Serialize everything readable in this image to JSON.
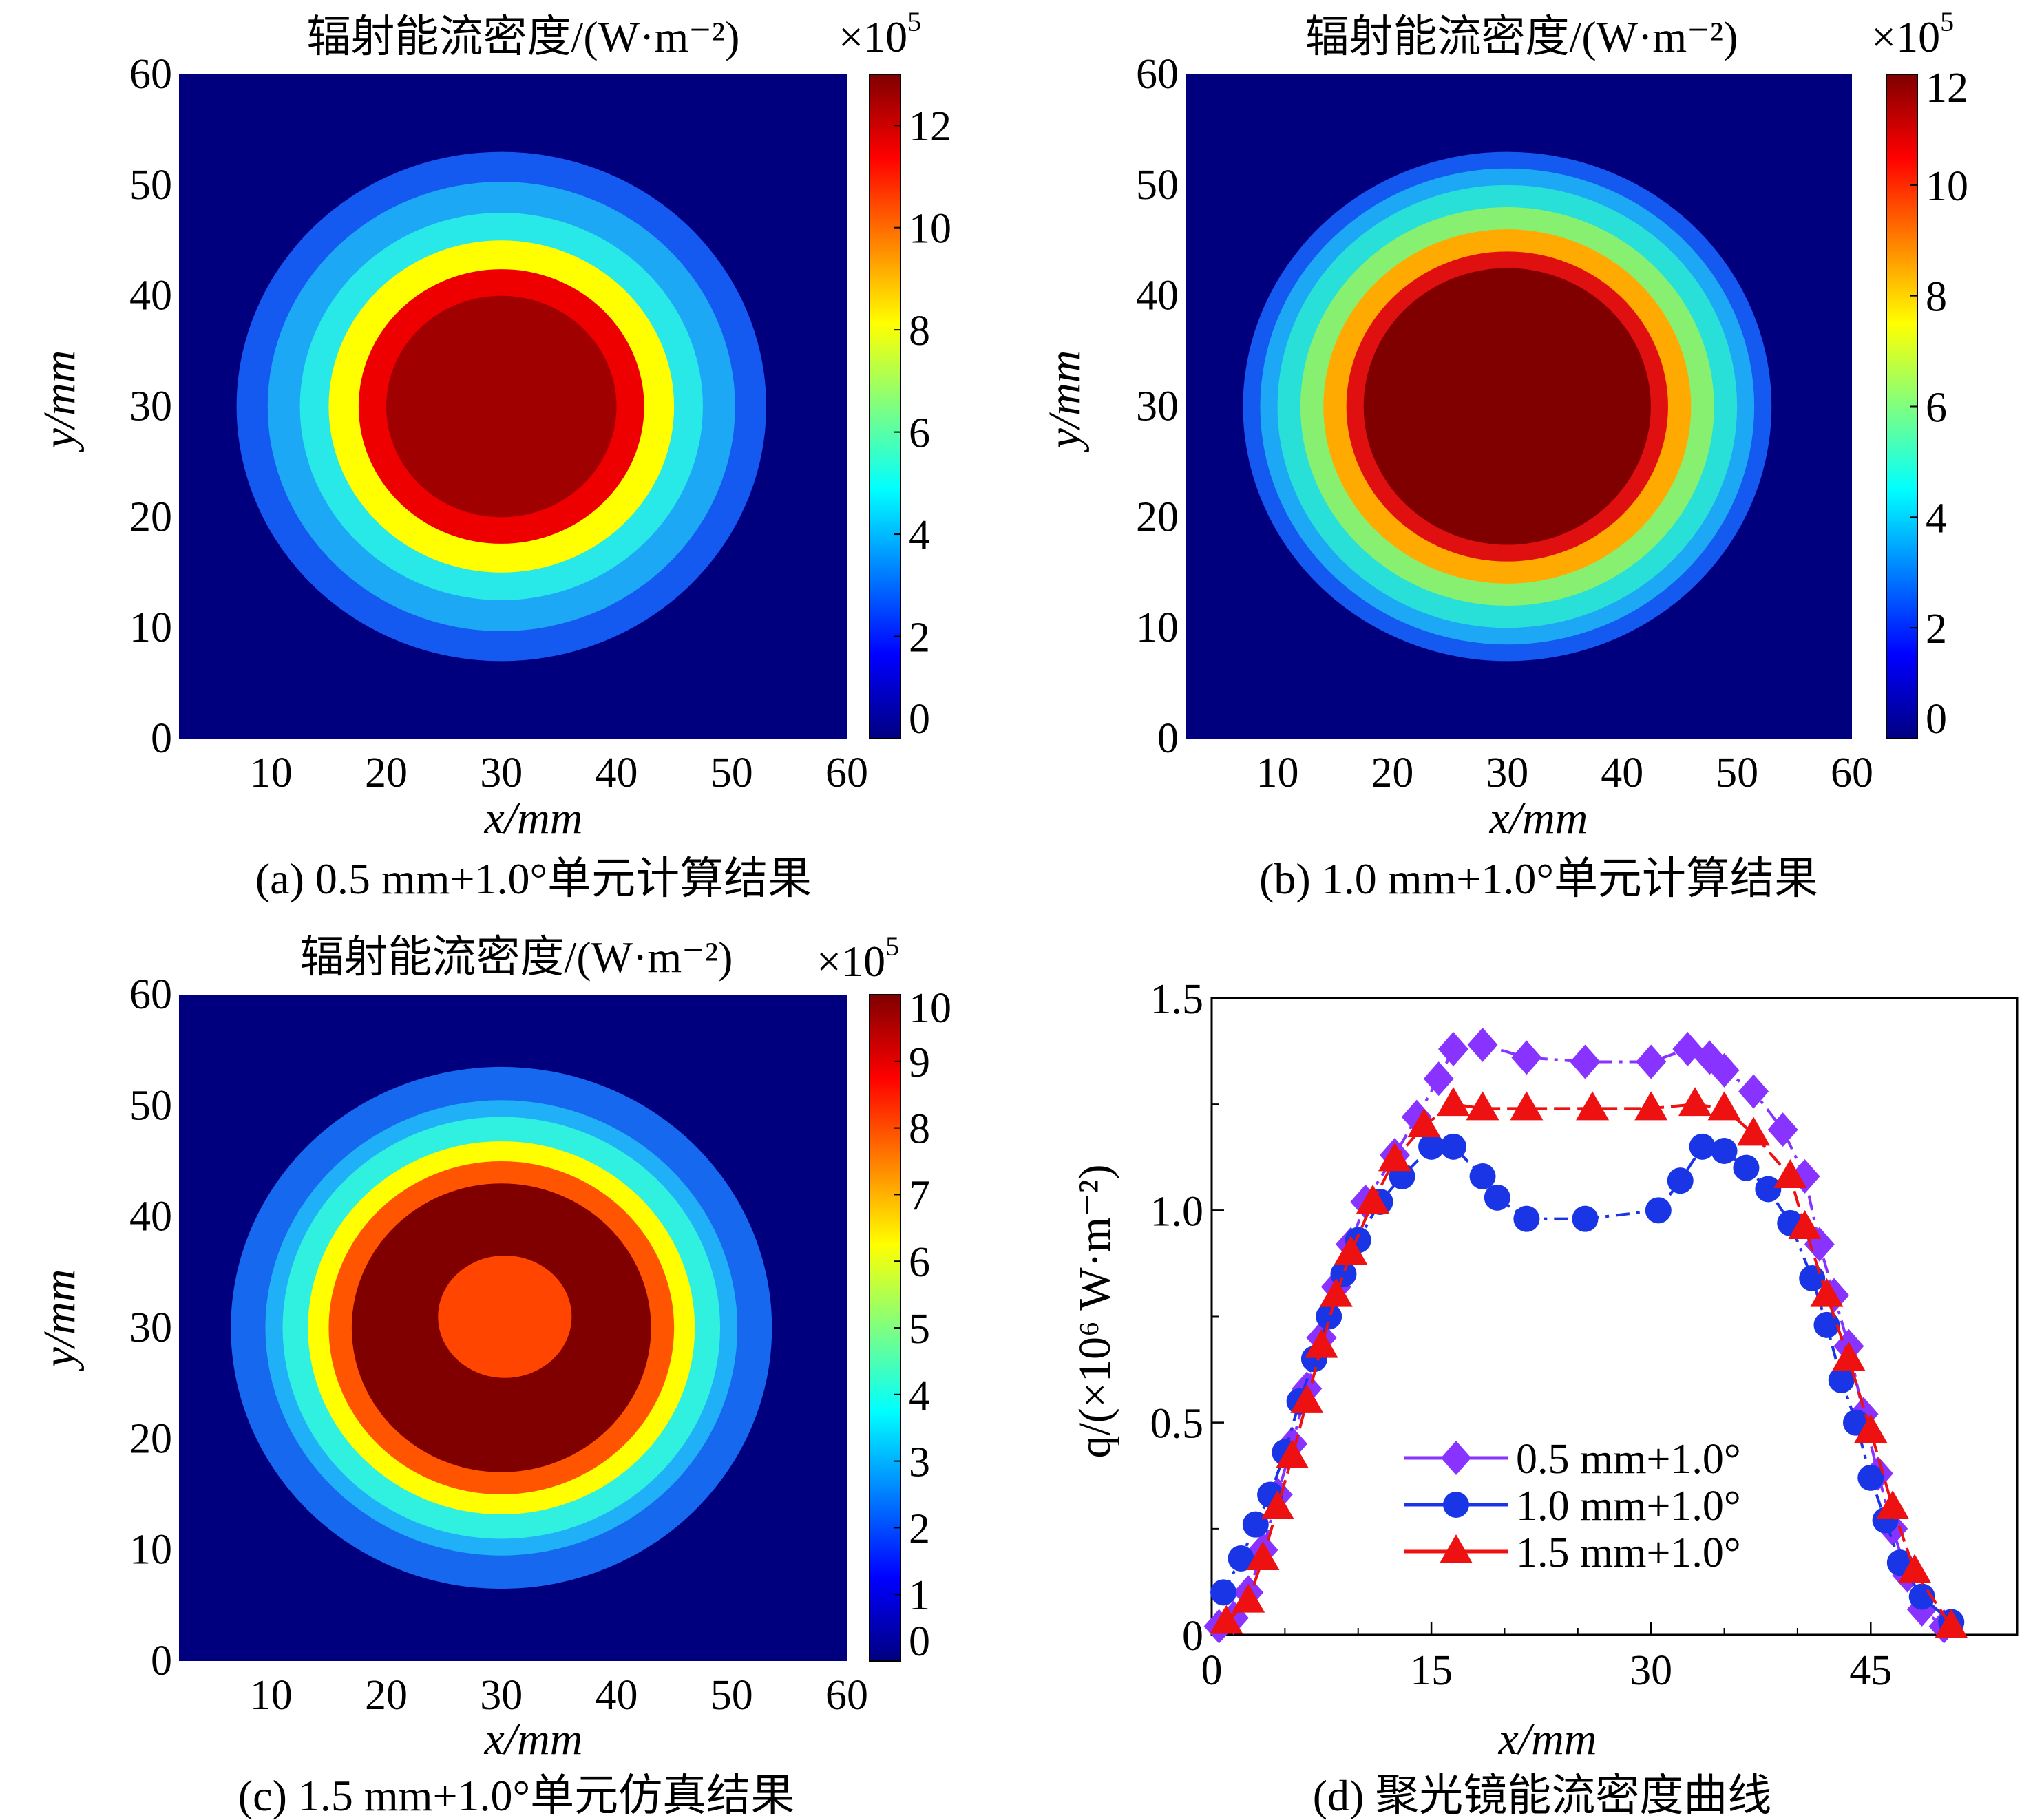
{
  "colors": {
    "jet": [
      "#00007f",
      "#0000ff",
      "#007fff",
      "#00ffff",
      "#7fff7f",
      "#ffff00",
      "#ff7f00",
      "#ff0000",
      "#7f0000"
    ],
    "ring_a": [
      "#1459f0",
      "#1ca8f5",
      "#28e8e8",
      "#ffff00",
      "#ee0000",
      "#a00000"
    ],
    "ring_b": [
      "#1459f0",
      "#1ca8f5",
      "#28e0d8",
      "#88f070",
      "#ffaa00",
      "#e01010",
      "#800000"
    ],
    "ring_c": [
      "#1668ee",
      "#20b0f8",
      "#30f0e0",
      "#ffff00",
      "#ff5500",
      "#800000"
    ],
    "spot_c": "#ff4500",
    "series": [
      "#8833ff",
      "#1a35e6",
      "#ee1111"
    ]
  },
  "chart_data": [
    {
      "id": "a",
      "type": "heatmap",
      "title": "辐射能流密度/(W·m⁻²)",
      "scale_label": "×10",
      "scale_exp": "5",
      "xlabel": "x/mm",
      "ylabel": "y/mm",
      "xticks": [
        "10",
        "20",
        "30",
        "40",
        "50",
        "60"
      ],
      "yticks": [
        "0",
        "10",
        "20",
        "30",
        "40",
        "50",
        "60"
      ],
      "xlim": [
        2,
        60
      ],
      "ylim": [
        0,
        60
      ],
      "colorbar": {
        "ticks": [
          "0",
          "2",
          "4",
          "6",
          "8",
          "10",
          "12"
        ],
        "tick_values": [
          0,
          2,
          4,
          6,
          8,
          10,
          12
        ],
        "range": [
          0,
          13
        ]
      },
      "center": [
        30,
        30
      ],
      "ring_radii_mm": [
        23,
        20.3,
        17.5,
        15,
        12.4,
        10
      ],
      "caption": "(a) 0.5 mm+1.0°单元计算结果"
    },
    {
      "id": "b",
      "type": "heatmap",
      "title": "辐射能流密度/(W·m⁻²)",
      "scale_label": "×10",
      "scale_exp": "5",
      "xlabel": "x/mm",
      "ylabel": "y/mm",
      "xticks": [
        "10",
        "20",
        "30",
        "40",
        "50",
        "60"
      ],
      "yticks": [
        "0",
        "10",
        "20",
        "30",
        "40",
        "50",
        "60"
      ],
      "xlim": [
        2,
        60
      ],
      "ylim": [
        0,
        60
      ],
      "colorbar": {
        "ticks": [
          "0",
          "2",
          "4",
          "6",
          "8",
          "10",
          "12"
        ],
        "tick_values": [
          0,
          2,
          4,
          6,
          8,
          10,
          12
        ],
        "range": [
          0,
          12
        ]
      },
      "center": [
        30,
        30
      ],
      "ring_radii_mm": [
        23,
        21.5,
        20,
        18,
        16,
        14,
        12.5
      ],
      "caption": "(b) 1.0 mm+1.0°单元计算结果"
    },
    {
      "id": "c",
      "type": "heatmap",
      "title": "辐射能流密度/(W·m⁻²)",
      "scale_label": "×10",
      "scale_exp": "5",
      "xlabel": "x/mm",
      "ylabel": "y/mm",
      "xticks": [
        "10",
        "20",
        "30",
        "40",
        "50",
        "60"
      ],
      "yticks": [
        "0",
        "10",
        "20",
        "30",
        "40",
        "50",
        "60"
      ],
      "xlim": [
        2,
        60
      ],
      "ylim": [
        0,
        60
      ],
      "colorbar": {
        "ticks": [
          "0",
          "1",
          "2",
          "3",
          "4",
          "5",
          "6",
          "7",
          "8",
          "9",
          "10"
        ],
        "tick_values": [
          0,
          1,
          2,
          3,
          4,
          5,
          6,
          7,
          8,
          9,
          10
        ],
        "range": [
          0,
          10
        ]
      },
      "center": [
        30,
        30
      ],
      "ring_radii_mm": [
        23.5,
        20.5,
        19,
        16.8,
        15,
        13
      ],
      "spot_center": [
        30.3,
        31
      ],
      "spot_radius_mm": 5.8,
      "caption": "(c) 1.5 mm+1.0°单元仿真结果"
    },
    {
      "id": "d",
      "type": "line",
      "xlabel": "x/mm",
      "ylabel": "q/(×10⁶ W·m⁻²)",
      "xticks": [
        "0",
        "15",
        "30",
        "45"
      ],
      "xtick_values": [
        0,
        15,
        30,
        45
      ],
      "yticks": [
        "0",
        "0.5",
        "1.0",
        "1.5"
      ],
      "ytick_values": [
        0,
        0.5,
        1.0,
        1.5
      ],
      "xlim": [
        0,
        55
      ],
      "ylim": [
        0,
        1.5
      ],
      "legend_position": "lower-center",
      "caption": "(d) 聚光镜能流密度曲线",
      "series": [
        {
          "name": "0.5 mm+1.0°",
          "marker": "diamond",
          "x": [
            0.5,
            1.5,
            2.5,
            3.5,
            4.5,
            5.5,
            6.5,
            7.5,
            8.5,
            9.5,
            10.5,
            12.5,
            14.0,
            15.5,
            16.5,
            18.5,
            21.5,
            25.5,
            30.0,
            32.5,
            34.0,
            35.0,
            37.0,
            39.0,
            40.5,
            41.5,
            42.5,
            43.5,
            44.5,
            45.5,
            46.5,
            47.5,
            48.5,
            50.0
          ],
          "y": [
            0.02,
            0.04,
            0.1,
            0.2,
            0.33,
            0.45,
            0.58,
            0.7,
            0.82,
            0.92,
            1.02,
            1.13,
            1.22,
            1.31,
            1.38,
            1.39,
            1.36,
            1.35,
            1.35,
            1.38,
            1.36,
            1.33,
            1.28,
            1.19,
            1.08,
            0.92,
            0.8,
            0.68,
            0.52,
            0.38,
            0.25,
            0.14,
            0.06,
            0.02
          ]
        },
        {
          "name": "1.0 mm+1.0°",
          "marker": "circle",
          "x": [
            0.8,
            2.0,
            3.0,
            4.0,
            5.0,
            6.0,
            7.0,
            8.0,
            9.0,
            10.0,
            11.5,
            13.0,
            15.0,
            16.5,
            18.5,
            19.5,
            21.5,
            25.5,
            30.5,
            32.0,
            33.5,
            35.0,
            36.5,
            38.0,
            39.5,
            41.0,
            42.0,
            43.0,
            44.0,
            45.0,
            46.0,
            47.0,
            48.5,
            50.5
          ],
          "y": [
            0.1,
            0.18,
            0.26,
            0.33,
            0.43,
            0.55,
            0.65,
            0.75,
            0.85,
            0.93,
            1.02,
            1.08,
            1.15,
            1.15,
            1.08,
            1.03,
            0.98,
            0.98,
            1.0,
            1.07,
            1.15,
            1.14,
            1.1,
            1.05,
            0.97,
            0.84,
            0.73,
            0.6,
            0.5,
            0.37,
            0.27,
            0.17,
            0.09,
            0.03
          ]
        },
        {
          "name": "1.5 mm+1.0°",
          "marker": "triangle",
          "x": [
            1.0,
            2.5,
            3.5,
            4.5,
            5.5,
            6.5,
            7.5,
            8.5,
            9.5,
            11.0,
            12.5,
            14.5,
            16.5,
            18.5,
            21.5,
            26.0,
            30.0,
            33.0,
            35.0,
            37.0,
            39.5,
            40.5,
            42.0,
            43.5,
            45.0,
            46.5,
            48.0,
            50.5
          ],
          "y": [
            0.03,
            0.08,
            0.18,
            0.3,
            0.42,
            0.55,
            0.68,
            0.8,
            0.9,
            1.02,
            1.12,
            1.2,
            1.25,
            1.24,
            1.24,
            1.24,
            1.24,
            1.25,
            1.24,
            1.18,
            1.08,
            0.96,
            0.8,
            0.65,
            0.48,
            0.3,
            0.15,
            0.02
          ]
        }
      ]
    }
  ]
}
